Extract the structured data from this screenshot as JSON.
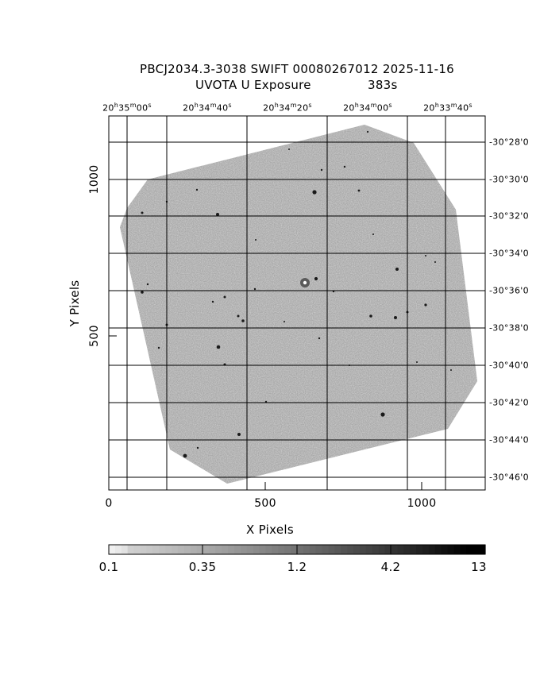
{
  "title": "PBCJ2034.3-3038 SWIFT 00080267012 2025-11-16",
  "subtitle_left": "UVOTA U Exposure",
  "subtitle_right": "383s",
  "x_axis_label": "X Pixels",
  "y_axis_label": "Y Pixels",
  "x_ticks": [
    "0",
    "500",
    "1000"
  ],
  "y_ticks": [
    "500",
    "1000"
  ],
  "ra_labels": [
    {
      "h": "20",
      "hs": "h",
      "m": "35",
      "ms": "m",
      "s": "00",
      "ss": "s"
    },
    {
      "h": "20",
      "hs": "h",
      "m": "34",
      "ms": "m",
      "s": "40",
      "ss": "s"
    },
    {
      "h": "20",
      "hs": "h",
      "m": "34",
      "ms": "m",
      "s": "20",
      "ss": "s"
    },
    {
      "h": "20",
      "hs": "h",
      "m": "34",
      "ms": "m",
      "s": "00",
      "ss": "s"
    },
    {
      "h": "20",
      "hs": "h",
      "m": "33",
      "ms": "m",
      "s": "40",
      "ss": "s"
    }
  ],
  "dec_labels": [
    "-30°28'0",
    "-30°30'0",
    "-30°32'0",
    "-30°34'0",
    "-30°36'0",
    "-30°38'0",
    "-30°40'0",
    "-30°42'0",
    "-30°44'0",
    "-30°46'0"
  ],
  "colorbar_ticks": [
    "0.1",
    "0.35",
    "1.2",
    "4.2",
    "13"
  ],
  "colors": {
    "image_fill": "#a9a9a9",
    "star": "#1a1a1a",
    "grid": "#000000"
  }
}
